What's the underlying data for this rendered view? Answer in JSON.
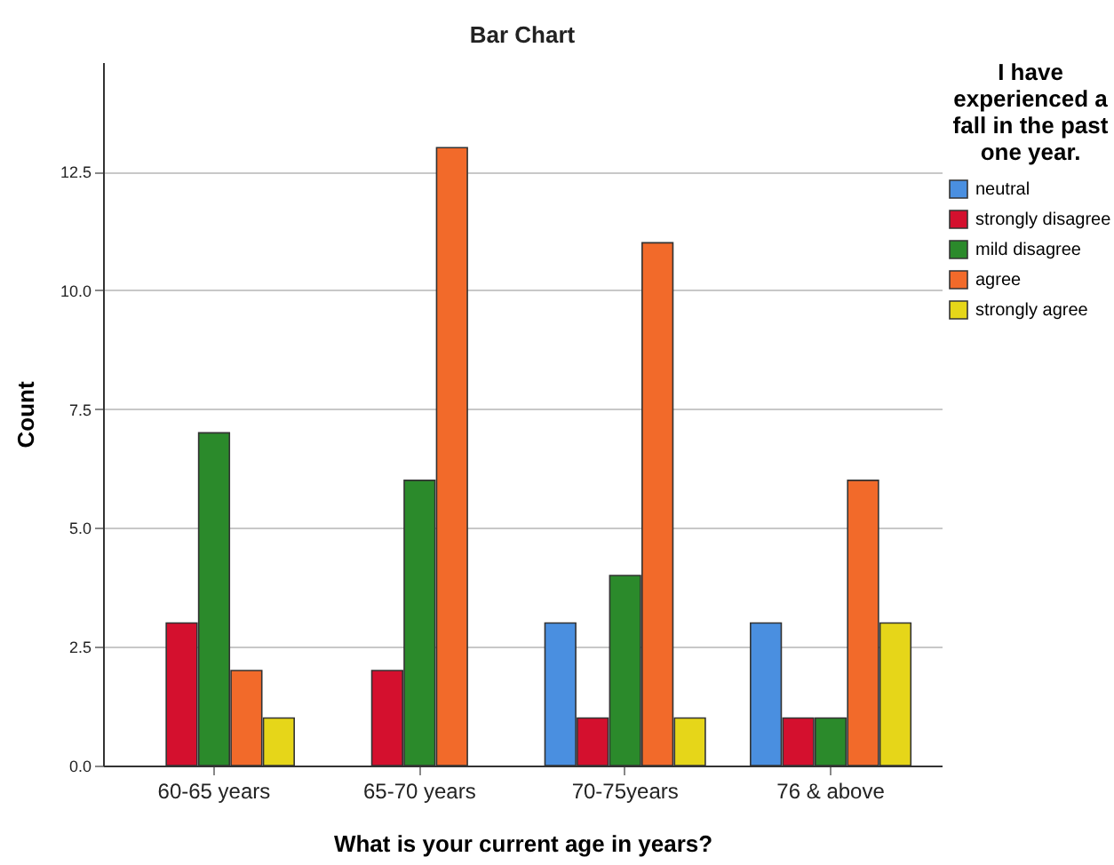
{
  "chart_data": {
    "type": "bar",
    "title": "Bar Chart",
    "xlabel": "What is your current age in years?",
    "ylabel": "Count",
    "legend_title": "I have experienced a fall in the past one year.",
    "categories": [
      "60-65 years",
      "65-70 years",
      "70-75years",
      "76 & above"
    ],
    "series": [
      {
        "name": "neutral",
        "color": "#4a8fe0",
        "values": [
          null,
          null,
          3,
          3
        ]
      },
      {
        "name": "strongly disagree",
        "color": "#d4102e",
        "values": [
          3,
          2,
          1,
          1
        ]
      },
      {
        "name": "mild disagree",
        "color": "#2b8a2b",
        "values": [
          7,
          6,
          4,
          1
        ]
      },
      {
        "name": "agree",
        "color": "#f26a2a",
        "values": [
          2,
          13,
          11,
          6
        ]
      },
      {
        "name": "strongly agree",
        "color": "#e6d619",
        "values": [
          1,
          null,
          1,
          3
        ]
      }
    ],
    "ylim": [
      0,
      14.8
    ],
    "yticks": [
      {
        "value": 0,
        "label": "0.0"
      },
      {
        "value": 2.5,
        "label": "2.5"
      },
      {
        "value": 5,
        "label": "5.0"
      },
      {
        "value": 7.5,
        "label": "7.5"
      },
      {
        "value": 10,
        "label": "10.0"
      },
      {
        "value": 12.5,
        "label": "12.5"
      }
    ],
    "grid": "y",
    "legend": "right"
  }
}
